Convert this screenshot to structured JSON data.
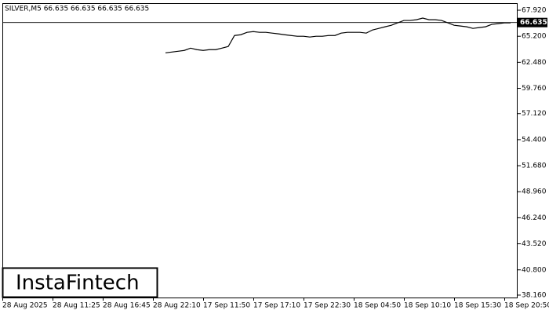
{
  "chart_data": {
    "type": "line",
    "title": "SILVER,M5  66.635 66.635 66.635 66.635",
    "categories": [
      "28 Aug 2025",
      null,
      null,
      null,
      null,
      null,
      null,
      null,
      "28 Aug 11:25",
      null,
      null,
      null,
      null,
      null,
      null,
      null,
      "28 Aug 16:45",
      null,
      null,
      null,
      null,
      null,
      null,
      null,
      "28 Aug 22:10",
      null,
      null,
      null,
      null,
      null,
      null,
      null,
      "17 Sep 11:50",
      null,
      null,
      null,
      null,
      null,
      null,
      null,
      "17 Sep 17:10",
      null,
      null,
      null,
      null,
      null,
      null,
      null,
      "17 Sep 22:30",
      null,
      null,
      null,
      null,
      null,
      null,
      null,
      "18 Sep 04:50",
      null,
      null,
      null,
      null,
      null,
      null,
      null,
      "18 Sep 10:10",
      null,
      null,
      null,
      null,
      null,
      null,
      null,
      "18 Sep 15:30",
      null,
      null,
      null,
      null,
      null,
      null,
      null,
      "18 Sep 20:50",
      null,
      null
    ],
    "series": [
      {
        "color": "#000000",
        "values": [
          null,
          null,
          null,
          null,
          null,
          null,
          null,
          null,
          null,
          null,
          null,
          null,
          null,
          null,
          null,
          null,
          null,
          null,
          null,
          null,
          null,
          null,
          null,
          null,
          null,
          null,
          63.47,
          63.55,
          63.63,
          63.72,
          63.96,
          63.8,
          63.72,
          63.8,
          63.8,
          63.96,
          64.13,
          65.28,
          65.36,
          65.61,
          65.69,
          65.61,
          65.61,
          65.53,
          65.45,
          65.36,
          65.28,
          65.2,
          65.2,
          65.12,
          65.2,
          65.2,
          65.28,
          65.28,
          65.53,
          65.61,
          65.61,
          65.61,
          65.53,
          65.86,
          66.02,
          66.19,
          66.35,
          66.6,
          66.85,
          66.85,
          66.93,
          67.1,
          66.93,
          66.93,
          66.85,
          66.6,
          66.35,
          66.27,
          66.19,
          66.02,
          66.11,
          66.19,
          66.44,
          66.52,
          66.6,
          66.6,
          null
        ]
      }
    ],
    "last_price": 66.635,
    "ylim": [
      37.91,
      68.66
    ],
    "yticks": [
      {
        "value": 38.16,
        "label": "38.160"
      },
      {
        "value": 40.8,
        "label": "40.800"
      },
      {
        "value": 43.52,
        "label": "43.520"
      },
      {
        "value": 46.24,
        "label": "46.240"
      },
      {
        "value": 48.96,
        "label": "48.960"
      },
      {
        "value": 51.68,
        "label": "51.680"
      },
      {
        "value": 54.4,
        "label": "54.400"
      },
      {
        "value": 57.12,
        "label": "57.120"
      },
      {
        "value": 59.76,
        "label": "59.760"
      },
      {
        "value": 62.48,
        "label": "62.480"
      },
      {
        "value": 65.2,
        "label": "65.200"
      },
      {
        "value": 67.92,
        "label": "67.920"
      }
    ],
    "logo": "InstaFintech"
  }
}
